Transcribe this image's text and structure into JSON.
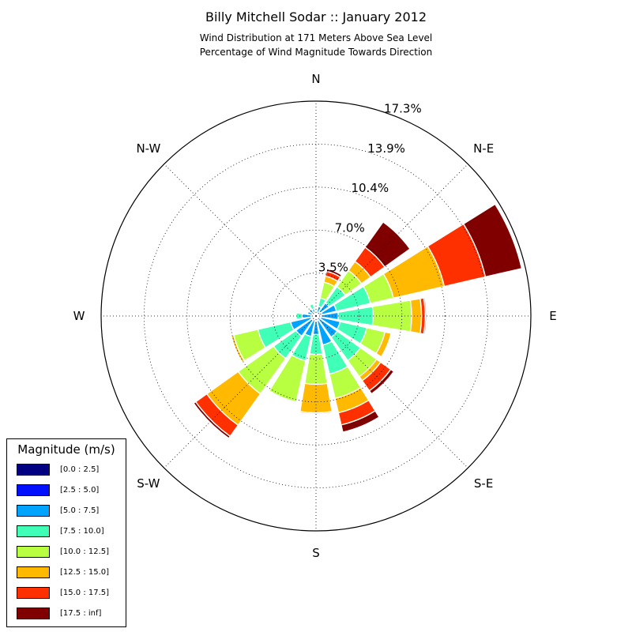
{
  "chart_data": {
    "type": "windrose",
    "title": "Billy Mitchell Sodar :: January 2012",
    "subtitle_1": "Wind Distribution at 171 Meters Above Sea Level",
    "subtitle_2": "Percentage of Wind Magnitude Towards Direction",
    "direction_labels": [
      "N",
      "N-E",
      "E",
      "S-E",
      "S",
      "S-W",
      "W",
      "N-W"
    ],
    "radial_tick_labels": [
      "3.5%",
      "7.0%",
      "10.4%",
      "13.9%",
      "17.3%"
    ],
    "radial_ticks": [
      3.46,
      6.92,
      10.38,
      13.84,
      17.3
    ],
    "radial_max": 17.3,
    "grid": true,
    "legend_title": "Magnitude (m/s)",
    "legend_position": "bottom-left",
    "bins": [
      "[0.0 : 2.5]",
      "[2.5 : 5.0]",
      "[5.0 : 7.5]",
      "[7.5 : 10.0]",
      "[10.0 : 12.5]",
      "[12.5 : 15.0]",
      "[15.0 : 17.5]",
      "[17.5 : inf]"
    ],
    "colors": [
      "#000080",
      "#0010ff",
      "#00a4ff",
      "#40ffb7",
      "#b7ff40",
      "#ffb900",
      "#ff3000",
      "#800000"
    ],
    "sector_direction_deg": [
      0,
      22.5,
      45,
      67.5,
      90,
      112.5,
      135,
      157.5,
      180,
      202.5,
      225,
      247.5,
      270,
      292.5,
      315,
      337.5
    ],
    "cumulative_percent": [
      [
        0.05,
        0.2,
        0.2,
        0.5,
        0.5,
        0.5,
        0.5,
        0.5
      ],
      [
        0.05,
        0.2,
        0.8,
        1.5,
        2.8,
        3.3,
        3.7,
        3.9
      ],
      [
        0.05,
        0.4,
        1.3,
        2.9,
        4.5,
        5.4,
        6.8,
        9.3
      ],
      [
        0.05,
        0.5,
        1.7,
        4.5,
        6.4,
        10.6,
        14.0,
        17.0
      ],
      [
        0.05,
        0.4,
        1.8,
        4.6,
        7.7,
        8.5,
        8.8,
        8.9
      ],
      [
        0.05,
        0.4,
        2.0,
        4.2,
        5.7,
        6.2,
        6.2,
        6.2
      ],
      [
        0.05,
        0.3,
        2.1,
        4.4,
        6.0,
        6.4,
        7.4,
        7.7
      ],
      [
        0.05,
        0.4,
        2.4,
        4.8,
        6.8,
        8.0,
        9.0,
        9.6
      ],
      [
        0.05,
        0.4,
        1.5,
        3.1,
        5.5,
        7.8,
        7.9,
        7.9
      ],
      [
        0.05,
        0.3,
        1.7,
        3.7,
        7.1,
        7.1,
        7.1,
        7.1
      ],
      [
        0.05,
        0.4,
        2.0,
        4.2,
        7.7,
        10.8,
        11.9,
        12.1
      ],
      [
        0.05,
        0.4,
        2.1,
        4.8,
        6.8,
        7.0,
        7.0,
        7.0
      ],
      [
        0.05,
        0.3,
        1.1,
        1.6,
        1.6,
        1.6,
        1.6,
        1.6
      ],
      [
        0.05,
        0.3,
        0.7,
        0.7,
        0.7,
        0.7,
        0.7,
        0.7
      ],
      [
        0.05,
        0.3,
        0.7,
        0.7,
        0.7,
        0.7,
        0.7,
        0.7
      ],
      [
        0.05,
        0.2,
        0.6,
        1.0,
        1.0,
        1.0,
        1.0,
        1.0
      ]
    ]
  }
}
